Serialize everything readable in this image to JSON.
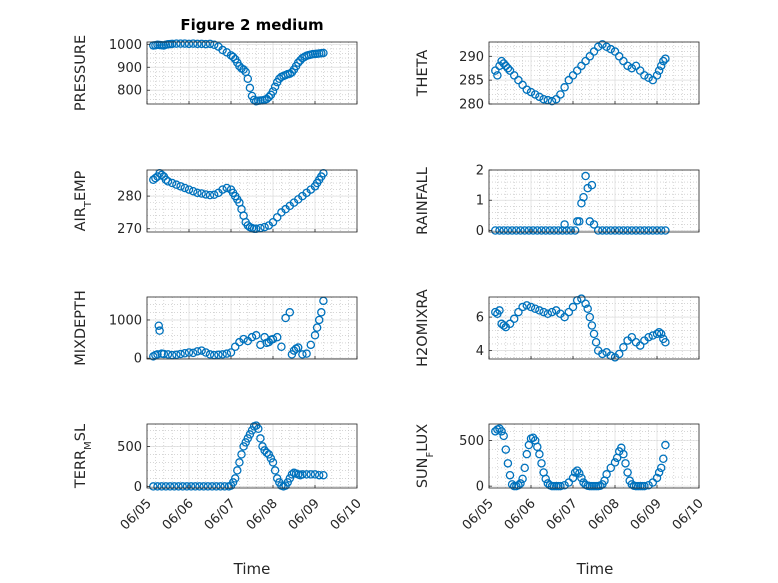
{
  "figure_title": "Figure 2 medium",
  "x_label": "Time",
  "marker_color": "#0072BD",
  "x_tick_labels": [
    "06/05",
    "06/06",
    "06/07",
    "06/08",
    "06/09",
    "06/10"
  ],
  "chart_data": [
    {
      "type": "scatter",
      "ylabel": "PRESSURE",
      "ylim": [
        740,
        1010
      ],
      "yticks": [
        800,
        900,
        1000
      ],
      "xlim": [
        0,
        5
      ],
      "grid": "on",
      "series": [
        {
          "x": [
            0.15,
            0.2,
            0.25,
            0.3,
            0.35,
            0.4,
            0.45,
            0.5,
            0.55,
            0.6,
            0.7,
            0.8,
            0.9,
            1.0,
            1.1,
            1.2,
            1.3,
            1.4,
            1.5,
            1.6,
            1.7,
            1.8,
            1.9,
            2.0,
            2.05,
            2.1,
            2.15,
            2.2,
            2.25,
            2.3,
            2.35,
            2.4,
            2.45,
            2.5,
            2.55,
            2.6,
            2.65,
            2.7,
            2.75,
            2.8,
            2.85,
            2.9,
            2.95,
            3.0,
            3.05,
            3.1,
            3.15,
            3.2,
            3.25,
            3.3,
            3.35,
            3.4,
            3.45,
            3.5,
            3.55,
            3.6,
            3.65,
            3.7,
            3.75,
            3.8,
            3.85,
            3.9,
            3.95,
            4.0,
            4.05,
            4.1,
            4.15,
            4.2
          ],
          "values": [
            995,
            996,
            998,
            997,
            996,
            995,
            998,
            1000,
            1001,
            1002,
            1003,
            1003,
            1003,
            1002,
            1003,
            1002,
            1002,
            1001,
            1002,
            998,
            990,
            975,
            965,
            952,
            945,
            935,
            920,
            905,
            895,
            890,
            880,
            850,
            810,
            775,
            758,
            752,
            754,
            755,
            756,
            758,
            762,
            770,
            780,
            795,
            815,
            835,
            850,
            858,
            862,
            866,
            870,
            872,
            878,
            890,
            905,
            920,
            930,
            940,
            945,
            950,
            953,
            955,
            957,
            958,
            959,
            960,
            961,
            962
          ]
        }
      ]
    },
    {
      "type": "scatter",
      "ylabel": "THETA",
      "ylim": [
        280,
        293
      ],
      "yticks": [
        280,
        285,
        290
      ],
      "xlim": [
        0,
        5
      ],
      "grid": "on",
      "series": [
        {
          "x": [
            0.15,
            0.2,
            0.25,
            0.3,
            0.35,
            0.4,
            0.45,
            0.5,
            0.6,
            0.7,
            0.8,
            0.9,
            1.0,
            1.1,
            1.2,
            1.3,
            1.4,
            1.5,
            1.6,
            1.7,
            1.8,
            1.9,
            2.0,
            2.1,
            2.2,
            2.3,
            2.4,
            2.5,
            2.6,
            2.7,
            2.8,
            2.9,
            3.0,
            3.1,
            3.2,
            3.3,
            3.4,
            3.5,
            3.6,
            3.7,
            3.8,
            3.9,
            4.0,
            4.05,
            4.1,
            4.15,
            4.2
          ],
          "values": [
            287,
            286,
            288,
            289,
            288.5,
            288,
            287.5,
            287,
            286,
            285,
            284,
            283,
            282.5,
            282,
            281.5,
            281,
            280.8,
            280.6,
            281,
            282,
            283.5,
            285,
            286,
            287,
            288,
            289,
            290,
            291,
            292,
            292.5,
            292,
            291.5,
            291,
            290,
            289,
            288,
            287.5,
            288,
            287,
            286,
            285.5,
            285,
            286,
            287,
            288,
            289,
            289.5
          ]
        }
      ]
    },
    {
      "type": "scatter",
      "ylabel": "AIR_TEMP",
      "ylim": [
        269,
        288
      ],
      "yticks": [
        270,
        280
      ],
      "xlim": [
        0,
        5
      ],
      "grid": "on",
      "series": [
        {
          "x": [
            0.15,
            0.2,
            0.25,
            0.3,
            0.35,
            0.4,
            0.45,
            0.5,
            0.6,
            0.7,
            0.8,
            0.9,
            1.0,
            1.1,
            1.2,
            1.3,
            1.4,
            1.5,
            1.6,
            1.7,
            1.8,
            1.9,
            2.0,
            2.05,
            2.1,
            2.15,
            2.2,
            2.25,
            2.3,
            2.35,
            2.4,
            2.45,
            2.5,
            2.55,
            2.6,
            2.7,
            2.8,
            2.9,
            3.0,
            3.1,
            3.2,
            3.3,
            3.4,
            3.5,
            3.6,
            3.7,
            3.8,
            3.9,
            4.0,
            4.05,
            4.1,
            4.15,
            4.2
          ],
          "values": [
            285,
            285.5,
            286,
            287,
            286.5,
            286,
            285,
            284.5,
            284,
            283.5,
            283,
            282.5,
            282,
            281.5,
            281,
            280.8,
            280.5,
            280.3,
            280.4,
            281,
            282,
            282.5,
            282,
            281,
            280,
            279,
            278,
            276,
            274,
            272,
            271,
            270.5,
            270.2,
            270,
            270,
            270.2,
            270.5,
            271,
            272,
            273.5,
            275,
            276,
            277,
            278,
            279,
            280,
            281,
            282,
            283,
            284,
            285,
            286,
            287
          ]
        }
      ]
    },
    {
      "type": "scatter",
      "ylabel": "RAINFALL",
      "ylim": [
        -0.05,
        2
      ],
      "yticks": [
        0,
        1,
        2
      ],
      "xlim": [
        0,
        5
      ],
      "grid": "on",
      "series": [
        {
          "x": [
            0.15,
            0.25,
            0.35,
            0.45,
            0.55,
            0.65,
            0.75,
            0.85,
            0.95,
            1.05,
            1.15,
            1.25,
            1.35,
            1.45,
            1.55,
            1.65,
            1.75,
            1.8,
            1.85,
            1.95,
            2.05,
            2.1,
            2.15,
            2.2,
            2.25,
            2.3,
            2.35,
            2.4,
            2.45,
            2.5,
            2.6,
            2.7,
            2.8,
            2.9,
            3.0,
            3.1,
            3.2,
            3.3,
            3.4,
            3.5,
            3.6,
            3.7,
            3.8,
            3.9,
            4.0,
            4.1,
            4.2
          ],
          "values": [
            0,
            0,
            0,
            0,
            0,
            0,
            0,
            0,
            0,
            0,
            0,
            0,
            0,
            0,
            0,
            0,
            0,
            0.2,
            0,
            0,
            0,
            0.3,
            0.3,
            0.9,
            1.1,
            1.8,
            1.4,
            0.3,
            1.5,
            0.2,
            0,
            0,
            0,
            0,
            0,
            0,
            0,
            0,
            0,
            0,
            0,
            0,
            0,
            0,
            0,
            0,
            0
          ]
        }
      ]
    },
    {
      "type": "scatter",
      "ylabel": "MIXDEPTH",
      "ylim": [
        -20,
        1600
      ],
      "yticks": [
        0,
        1000
      ],
      "xlim": [
        0,
        5
      ],
      "grid": "on",
      "series": [
        {
          "x": [
            0.15,
            0.2,
            0.25,
            0.28,
            0.3,
            0.35,
            0.4,
            0.5,
            0.6,
            0.7,
            0.8,
            0.9,
            1.0,
            1.1,
            1.2,
            1.3,
            1.4,
            1.5,
            1.6,
            1.7,
            1.8,
            1.9,
            2.0,
            2.1,
            2.2,
            2.3,
            2.4,
            2.5,
            2.6,
            2.7,
            2.8,
            2.85,
            2.9,
            2.95,
            3.0,
            3.1,
            3.2,
            3.3,
            3.4,
            3.45,
            3.5,
            3.55,
            3.6,
            3.7,
            3.8,
            3.9,
            4.0,
            4.05,
            4.1,
            4.15,
            4.2
          ],
          "values": [
            50,
            80,
            100,
            850,
            720,
            120,
            110,
            100,
            80,
            90,
            110,
            130,
            150,
            140,
            180,
            200,
            150,
            100,
            80,
            90,
            100,
            120,
            150,
            300,
            420,
            500,
            450,
            550,
            600,
            350,
            550,
            400,
            420,
            480,
            500,
            550,
            300,
            1050,
            1200,
            100,
            200,
            250,
            280,
            100,
            120,
            350,
            600,
            800,
            1000,
            1200,
            1500
          ]
        }
      ]
    },
    {
      "type": "scatter",
      "ylabel": "H2OMIXRA",
      "ylim": [
        3.5,
        7.2
      ],
      "yticks": [
        4,
        6
      ],
      "xlim": [
        0,
        5
      ],
      "grid": "on",
      "series": [
        {
          "x": [
            0.15,
            0.2,
            0.25,
            0.3,
            0.35,
            0.4,
            0.5,
            0.6,
            0.7,
            0.8,
            0.9,
            1.0,
            1.1,
            1.2,
            1.3,
            1.4,
            1.5,
            1.6,
            1.7,
            1.8,
            1.9,
            2.0,
            2.1,
            2.2,
            2.3,
            2.35,
            2.4,
            2.45,
            2.5,
            2.55,
            2.6,
            2.7,
            2.8,
            2.9,
            3.0,
            3.1,
            3.2,
            3.3,
            3.4,
            3.5,
            3.6,
            3.7,
            3.8,
            3.9,
            4.0,
            4.05,
            4.1,
            4.15,
            4.2
          ],
          "values": [
            6.3,
            6.2,
            6.4,
            5.6,
            5.5,
            5.4,
            5.6,
            5.9,
            6.3,
            6.6,
            6.7,
            6.6,
            6.5,
            6.4,
            6.3,
            6.2,
            6.3,
            6.4,
            6.2,
            6.0,
            6.3,
            6.6,
            7.0,
            7.1,
            6.8,
            6.5,
            6.0,
            5.5,
            5.0,
            4.5,
            4.0,
            3.8,
            3.9,
            3.7,
            3.6,
            3.8,
            4.2,
            4.6,
            4.8,
            4.5,
            4.3,
            4.6,
            4.8,
            4.9,
            5.0,
            5.1,
            5.0,
            4.7,
            4.5
          ]
        }
      ]
    },
    {
      "type": "scatter",
      "ylabel": "TERR_MSL",
      "ylim": [
        -20,
        780
      ],
      "yticks": [
        0,
        500
      ],
      "xlim": [
        0,
        5
      ],
      "grid": "on",
      "series": [
        {
          "x": [
            0.15,
            0.25,
            0.35,
            0.45,
            0.55,
            0.65,
            0.75,
            0.85,
            0.95,
            1.05,
            1.15,
            1.25,
            1.35,
            1.45,
            1.55,
            1.65,
            1.75,
            1.85,
            1.95,
            2.0,
            2.05,
            2.1,
            2.15,
            2.2,
            2.25,
            2.3,
            2.35,
            2.4,
            2.45,
            2.5,
            2.55,
            2.6,
            2.65,
            2.7,
            2.75,
            2.8,
            2.85,
            2.9,
            2.95,
            3.0,
            3.05,
            3.1,
            3.15,
            3.2,
            3.25,
            3.3,
            3.35,
            3.4,
            3.45,
            3.5,
            3.55,
            3.6,
            3.65,
            3.7,
            3.8,
            3.9,
            4.0,
            4.1,
            4.2
          ],
          "values": [
            0,
            0,
            0,
            0,
            0,
            0,
            0,
            0,
            0,
            0,
            0,
            0,
            0,
            0,
            0,
            0,
            0,
            0,
            0,
            10,
            50,
            100,
            200,
            300,
            400,
            500,
            550,
            600,
            650,
            700,
            750,
            760,
            720,
            600,
            500,
            450,
            420,
            400,
            350,
            300,
            200,
            100,
            50,
            10,
            0,
            10,
            50,
            100,
            150,
            170,
            160,
            150,
            140,
            150,
            150,
            150,
            150,
            140,
            140
          ]
        }
      ]
    },
    {
      "type": "scatter",
      "ylabel": "SUN_FLUX",
      "ylim": [
        -20,
        680
      ],
      "yticks": [
        0,
        500
      ],
      "xlim": [
        0,
        5
      ],
      "grid": "on",
      "series": [
        {
          "x": [
            0.15,
            0.2,
            0.25,
            0.3,
            0.35,
            0.4,
            0.45,
            0.5,
            0.55,
            0.6,
            0.65,
            0.7,
            0.75,
            0.8,
            0.85,
            0.9,
            0.95,
            1.0,
            1.05,
            1.1,
            1.15,
            1.2,
            1.25,
            1.3,
            1.35,
            1.4,
            1.45,
            1.5,
            1.55,
            1.6,
            1.65,
            1.7,
            1.8,
            1.9,
            2.0,
            2.05,
            2.1,
            2.15,
            2.2,
            2.25,
            2.3,
            2.35,
            2.4,
            2.45,
            2.5,
            2.55,
            2.6,
            2.65,
            2.7,
            2.75,
            2.8,
            2.9,
            3.0,
            3.05,
            3.1,
            3.15,
            3.2,
            3.25,
            3.3,
            3.35,
            3.4,
            3.45,
            3.5,
            3.55,
            3.6,
            3.65,
            3.7,
            3.8,
            3.9,
            4.0,
            4.05,
            4.1,
            4.15,
            4.2
          ],
          "values": [
            600,
            620,
            630,
            600,
            550,
            400,
            250,
            120,
            20,
            0,
            0,
            10,
            30,
            80,
            200,
            350,
            450,
            520,
            530,
            500,
            430,
            350,
            250,
            150,
            80,
            30,
            10,
            0,
            0,
            0,
            0,
            0,
            10,
            40,
            90,
            150,
            170,
            140,
            90,
            40,
            15,
            5,
            0,
            0,
            0,
            0,
            0,
            5,
            20,
            60,
            130,
            200,
            260,
            310,
            380,
            420,
            350,
            250,
            150,
            60,
            20,
            5,
            0,
            0,
            0,
            0,
            0,
            10,
            40,
            90,
            150,
            200,
            300,
            450
          ]
        }
      ]
    }
  ]
}
